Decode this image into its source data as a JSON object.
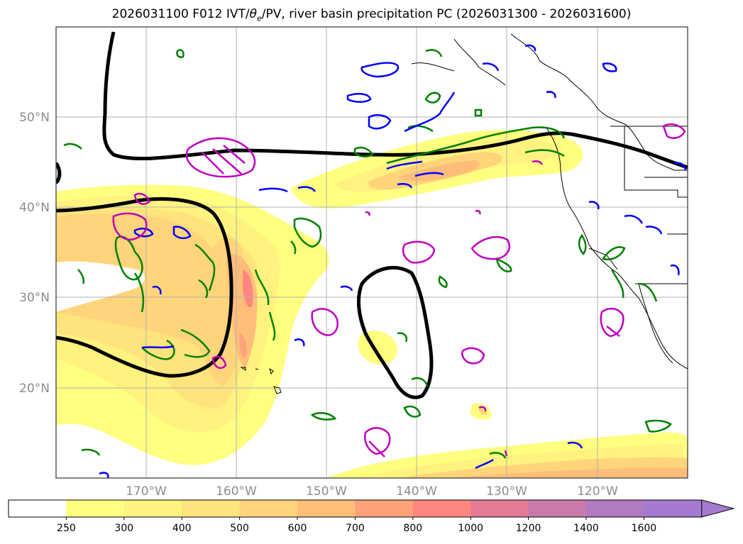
{
  "title": {
    "prefix": "2026031100 F012 IVT/",
    "theta": "θ",
    "theta_sub": "e",
    "suffix": "/PV, river basin precipitation PC (2026031300 - 2026031600)"
  },
  "map": {
    "lat_labels": [
      "50°N",
      "40°N",
      "30°N",
      "20°N"
    ],
    "lon_labels": [
      "170°W",
      "160°W",
      "150°W",
      "140°W",
      "130°W",
      "120°W"
    ],
    "grid": true,
    "contour_colors": {
      "pv_theta": "#000000",
      "green": "#008000",
      "blue": "#0000ff",
      "magenta": "#bf00bf"
    }
  },
  "colorbar": {
    "labels": [
      "250",
      "300",
      "400",
      "500",
      "600",
      "700",
      "800",
      "1000",
      "1200",
      "1400",
      "1600"
    ],
    "colors": [
      "#ffffff",
      "#ffff80",
      "#fff27f",
      "#ffe37c",
      "#ffd47a",
      "#ffbd7a",
      "#ffa27a",
      "#ff8780",
      "#e57a96",
      "#c97aa8",
      "#b27ac0",
      "#a47ad0"
    ],
    "extend": "max"
  }
}
